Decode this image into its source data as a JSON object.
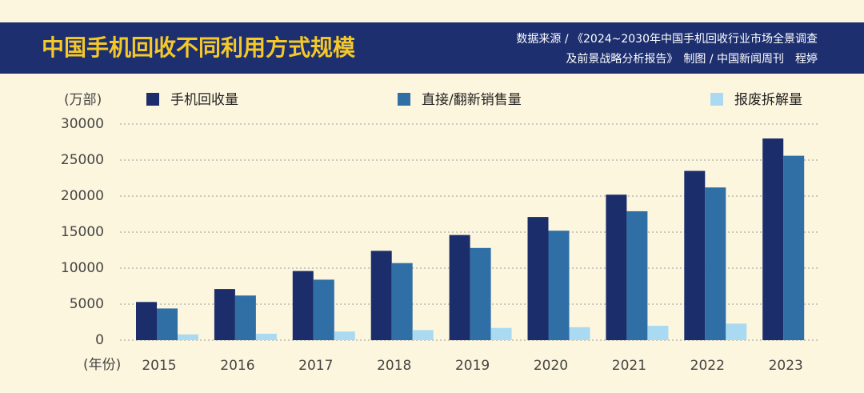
{
  "chart_data": {
    "type": "bar",
    "title": "中国手机回收不同利用方式规模",
    "source_line1": "数据来源 / 《2024~2030年中国手机回收行业市场全景调查",
    "source_line2": "及前景战略分析报告》　制图 / 中国新闻周刊　程婷",
    "y_axis_label": "(万部)",
    "x_axis_label": "(年份)",
    "categories": [
      "2015",
      "2016",
      "2017",
      "2018",
      "2019",
      "2020",
      "2021",
      "2022",
      "2023"
    ],
    "series": [
      {
        "name": "手机回收量",
        "color": "#1b2d6b",
        "values": [
          5300,
          7100,
          9600,
          12400,
          14600,
          17100,
          20200,
          23500,
          28000
        ]
      },
      {
        "name": "直接/翻新销售量",
        "color": "#2f6fa6",
        "values": [
          4400,
          6200,
          8400,
          10700,
          12800,
          15200,
          17900,
          21200,
          25600
        ]
      },
      {
        "name": "报废拆解量",
        "color": "#a9daf1",
        "values": [
          800,
          900,
          1200,
          1400,
          1700,
          1800,
          2000,
          2300,
          null
        ]
      }
    ],
    "ylim": [
      0,
      30000
    ],
    "yticks": [
      0,
      5000,
      10000,
      15000,
      20000,
      25000,
      30000
    ],
    "grid": true
  }
}
